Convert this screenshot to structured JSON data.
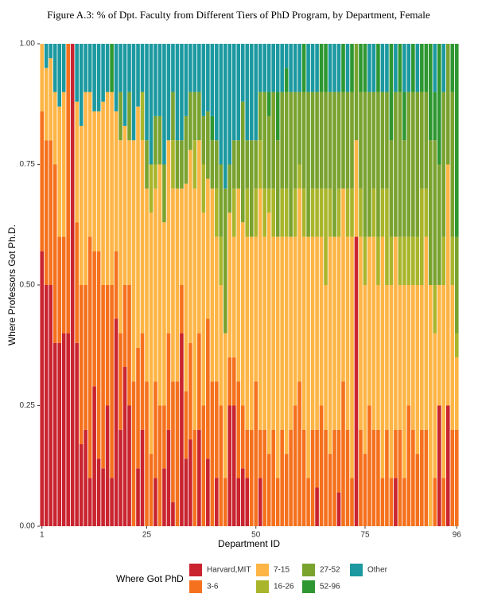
{
  "chart_data": {
    "type": "stacked_bar",
    "title": "Figure A.3: % of Dpt. Faculty from Different Tiers of PhD Program, by Department, Female",
    "x_label": "Department ID",
    "y_label": "Where Professors Got Ph.D.",
    "legend_title": "Where Got PhD",
    "x": [
      1,
      2,
      3,
      4,
      5,
      6,
      7,
      8,
      9,
      10,
      11,
      12,
      13,
      14,
      15,
      16,
      17,
      18,
      19,
      20,
      21,
      22,
      23,
      24,
      25,
      26,
      27,
      28,
      29,
      30,
      31,
      32,
      33,
      34,
      35,
      36,
      37,
      38,
      39,
      40,
      41,
      42,
      43,
      44,
      45,
      46,
      47,
      48,
      49,
      50,
      51,
      52,
      53,
      54,
      55,
      56,
      57,
      58,
      59,
      60,
      61,
      62,
      63,
      64,
      65,
      66,
      67,
      68,
      69,
      70,
      71,
      72,
      73,
      74,
      75,
      76,
      77,
      78,
      79,
      80,
      81,
      82,
      83,
      84,
      85,
      86,
      87,
      88,
      89,
      90,
      91,
      92,
      93,
      94,
      95,
      96
    ],
    "xlim": [
      0.5,
      96.5
    ],
    "xticks": [
      1,
      25,
      50,
      75,
      96
    ],
    "ylim": [
      0,
      1
    ],
    "yticks": [
      {
        "value": 0,
        "label": "0.00"
      },
      {
        "value": 0.25,
        "label": "0.25"
      },
      {
        "value": 0.5,
        "label": "0.50"
      },
      {
        "value": 0.75,
        "label": "0.75"
      },
      {
        "value": 1,
        "label": "1.00"
      }
    ],
    "series": [
      {
        "name": "Harvard,MIT",
        "color": "#c9242f",
        "values": [
          0.57,
          0.5,
          0.5,
          0.38,
          0.38,
          0.4,
          0.4,
          1,
          0.38,
          0.17,
          0.2,
          0.1,
          0.29,
          0.14,
          0.12,
          0.25,
          0.1,
          0.43,
          0.2,
          0.33,
          0.25,
          0,
          0.12,
          0.2,
          0,
          0,
          0.1,
          0,
          0.12,
          0.2,
          0.05,
          0,
          0.4,
          0.14,
          0.18,
          0,
          0.2,
          0,
          0.14,
          0,
          0.1,
          0,
          0,
          0.25,
          0.25,
          0.1,
          0.12,
          0.1,
          0,
          0,
          0.1,
          0,
          0,
          0,
          0,
          0,
          0,
          0,
          0,
          0,
          0,
          0,
          0,
          0.08,
          0,
          0,
          0,
          0,
          0.07,
          0,
          0,
          0,
          0.6,
          0,
          0,
          0,
          0,
          0,
          0,
          0,
          0,
          0.1,
          0,
          0,
          0,
          0,
          0,
          0,
          0,
          0,
          0,
          0.25,
          0,
          0.25,
          0,
          0
        ]
      },
      {
        "name": "3-6",
        "color": "#f5711d",
        "values": [
          0.29,
          0.3,
          0.3,
          0.37,
          0.22,
          0.2,
          0.6,
          0,
          0.25,
          0.33,
          0.3,
          0.5,
          0.28,
          0.43,
          0.38,
          0.25,
          0.4,
          0.14,
          0.2,
          0.17,
          0.25,
          0.3,
          0.25,
          0.2,
          0.3,
          0.15,
          0.2,
          0.25,
          0.13,
          0.2,
          0.25,
          0.3,
          0.1,
          0.14,
          0.2,
          0.2,
          0.2,
          0.25,
          0.29,
          0.3,
          0.2,
          0.25,
          0.1,
          0.1,
          0.1,
          0.2,
          0.13,
          0.1,
          0.2,
          0.3,
          0.1,
          0.2,
          0.15,
          0.2,
          0.1,
          0.2,
          0.15,
          0.2,
          0.25,
          0.3,
          0.2,
          0.1,
          0.2,
          0.12,
          0.25,
          0.2,
          0.15,
          0.2,
          0.13,
          0.3,
          0.2,
          0.1,
          0,
          0.2,
          0.15,
          0.25,
          0.2,
          0.2,
          0.1,
          0.2,
          0.1,
          0.1,
          0.2,
          0.1,
          0.25,
          0.2,
          0.15,
          0.2,
          0.2,
          0,
          0.1,
          0,
          0.1,
          0,
          0.2,
          0.2
        ]
      },
      {
        "name": "7-15",
        "color": "#fdb546",
        "values": [
          0.14,
          0.15,
          0.17,
          0.15,
          0.27,
          0.3,
          0,
          0,
          0.25,
          0.33,
          0.4,
          0.3,
          0.29,
          0.29,
          0.38,
          0.4,
          0.4,
          0.29,
          0.4,
          0.33,
          0.3,
          0.5,
          0.5,
          0.4,
          0.4,
          0.5,
          0.4,
          0.5,
          0.38,
          0.4,
          0.4,
          0.4,
          0.2,
          0.43,
          0.4,
          0.5,
          0.4,
          0.4,
          0.29,
          0.4,
          0.3,
          0.25,
          0.3,
          0.3,
          0.25,
          0.4,
          0.38,
          0.4,
          0.4,
          0.3,
          0.5,
          0.4,
          0.5,
          0.4,
          0.5,
          0.4,
          0.45,
          0.4,
          0.35,
          0.4,
          0.4,
          0.5,
          0.4,
          0.4,
          0.35,
          0.3,
          0.45,
          0.4,
          0.4,
          0.4,
          0.4,
          0.5,
          0.2,
          0.4,
          0.35,
          0.35,
          0.4,
          0.3,
          0.5,
          0.3,
          0.4,
          0.4,
          0.3,
          0.4,
          0.25,
          0.3,
          0.35,
          0.3,
          0.4,
          0.5,
          0.3,
          0.25,
          0.4,
          0.5,
          0.3,
          0.15
        ]
      },
      {
        "name": "16-26",
        "color": "#a9b52a",
        "values": [
          0,
          0,
          0,
          0,
          0,
          0,
          0,
          0,
          0,
          0,
          0,
          0,
          0,
          0,
          0,
          0,
          0,
          0,
          0,
          0,
          0,
          0,
          0,
          0.1,
          0,
          0.1,
          0.05,
          0,
          0,
          0,
          0.1,
          0,
          0,
          0,
          0,
          0.1,
          0,
          0.1,
          0,
          0,
          0.1,
          0.1,
          0,
          0,
          0.1,
          0,
          0,
          0.1,
          0,
          0.1,
          0.1,
          0.1,
          0.05,
          0.1,
          0,
          0.1,
          0.1,
          0,
          0.1,
          0.05,
          0.1,
          0,
          0.1,
          0.1,
          0.1,
          0.2,
          0.1,
          0,
          0.1,
          0,
          0.1,
          0.1,
          0,
          0.1,
          0.1,
          0,
          0.1,
          0.1,
          0.1,
          0.2,
          0.1,
          0,
          0.1,
          0.1,
          0.1,
          0.1,
          0.1,
          0.2,
          0.1,
          0,
          0.1,
          0,
          0.1,
          0,
          0.1,
          0.05
        ]
      },
      {
        "name": "27-52",
        "color": "#79a22f",
        "values": [
          0,
          0,
          0,
          0,
          0,
          0,
          0,
          0,
          0,
          0,
          0,
          0,
          0,
          0,
          0,
          0,
          0,
          0,
          0.1,
          0,
          0.1,
          0,
          0,
          0,
          0.1,
          0,
          0.1,
          0.1,
          0.12,
          0,
          0.1,
          0.1,
          0.1,
          0.14,
          0.12,
          0.1,
          0.1,
          0.1,
          0.14,
          0.1,
          0.1,
          0.15,
          0.3,
          0.1,
          0.1,
          0.1,
          0.25,
          0.1,
          0.2,
          0.1,
          0.1,
          0.2,
          0.15,
          0.2,
          0.2,
          0.2,
          0.2,
          0.3,
          0.2,
          0.15,
          0.2,
          0.3,
          0.2,
          0.2,
          0.2,
          0.2,
          0.2,
          0.3,
          0.2,
          0.2,
          0.2,
          0.2,
          0.2,
          0.2,
          0.3,
          0.3,
          0.2,
          0.3,
          0.2,
          0.2,
          0.2,
          0.3,
          0.3,
          0.2,
          0.3,
          0.3,
          0.3,
          0.2,
          0.2,
          0.3,
          0.3,
          0.25,
          0.3,
          0.25,
          0.3,
          0.2
        ]
      },
      {
        "name": "52-96",
        "color": "#2e9731",
        "values": [
          0,
          0,
          0,
          0,
          0,
          0,
          0,
          0,
          0,
          0,
          0,
          0,
          0,
          0,
          0,
          0,
          0.1,
          0,
          0,
          0,
          0,
          0,
          0,
          0,
          0,
          0,
          0,
          0,
          0,
          0,
          0,
          0,
          0,
          0,
          0,
          0,
          0,
          0,
          0,
          0.05,
          0,
          0,
          0,
          0,
          0,
          0,
          0,
          0,
          0,
          0,
          0,
          0,
          0.05,
          0,
          0.1,
          0,
          0.05,
          0,
          0,
          0,
          0.1,
          0,
          0,
          0,
          0.1,
          0.1,
          0,
          0,
          0,
          0.1,
          0,
          0.1,
          0,
          0.1,
          0.1,
          0,
          0,
          0.1,
          0,
          0,
          0.2,
          0,
          0.1,
          0.1,
          0,
          0.1,
          0,
          0.1,
          0.1,
          0.2,
          0.1,
          0.25,
          0,
          0,
          0.1,
          0.4
        ]
      },
      {
        "name": "Other",
        "color": "#1c99a0",
        "values": [
          0,
          0.05,
          0.03,
          0.1,
          0.13,
          0.1,
          0,
          0,
          0.12,
          0.17,
          0.1,
          0.1,
          0.14,
          0.14,
          0.12,
          0.1,
          0,
          0.14,
          0.1,
          0.17,
          0.1,
          0.2,
          0.13,
          0.1,
          0.2,
          0.25,
          0.15,
          0.15,
          0.25,
          0.2,
          0.1,
          0.2,
          0.2,
          0.15,
          0.1,
          0.1,
          0.1,
          0.15,
          0.14,
          0.15,
          0.2,
          0.25,
          0.3,
          0.25,
          0.2,
          0.2,
          0.12,
          0.2,
          0.2,
          0.2,
          0.1,
          0.1,
          0.1,
          0.1,
          0.1,
          0.1,
          0.05,
          0.1,
          0.1,
          0.1,
          0,
          0.1,
          0.1,
          0.1,
          0,
          0,
          0.1,
          0.1,
          0.1,
          0,
          0.1,
          0,
          0,
          0,
          0,
          0.1,
          0.1,
          0,
          0.1,
          0.1,
          0,
          0.1,
          0,
          0.1,
          0.1,
          0,
          0.1,
          0,
          0,
          0,
          0.1,
          0,
          0.1,
          0,
          0,
          0
        ]
      }
    ]
  }
}
